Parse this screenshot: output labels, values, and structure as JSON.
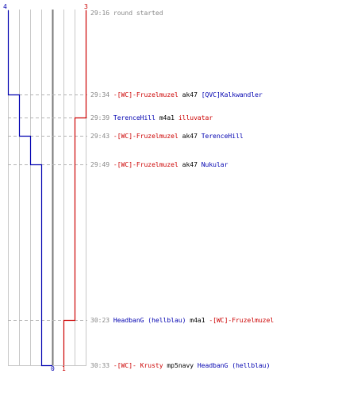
{
  "axis": {
    "left_top": "4",
    "right_top": "3",
    "bottom_mid": "0",
    "bottom_right": "1"
  },
  "colors": {
    "blue": "#0000b0",
    "red": "#cc0000",
    "grid": "#c8c8c8",
    "center": "#7a7a7a",
    "dash": "#b4b4b4",
    "time": "#888888",
    "text": "#000000"
  },
  "events": [
    {
      "time": "29:16",
      "parts": [
        {
          "text": "round started",
          "color": "gray"
        }
      ]
    },
    {
      "time": "29:34",
      "parts": [
        {
          "text": "-[WC]-Fruzelmuzel",
          "color": "red"
        },
        {
          "text": " ak47 ",
          "color": "black"
        },
        {
          "text": "[QVC]Kalkwandler",
          "color": "blue"
        }
      ]
    },
    {
      "time": "29:39",
      "parts": [
        {
          "text": "TerenceHill",
          "color": "blue"
        },
        {
          "text": " m4a1 ",
          "color": "black"
        },
        {
          "text": "illuvatar",
          "color": "red"
        }
      ]
    },
    {
      "time": "29:43",
      "parts": [
        {
          "text": "-[WC]-Fruzelmuzel",
          "color": "red"
        },
        {
          "text": " ak47 ",
          "color": "black"
        },
        {
          "text": "TerenceHill",
          "color": "blue"
        }
      ]
    },
    {
      "time": "29:49",
      "parts": [
        {
          "text": "-[WC]-Fruzelmuzel",
          "color": "red"
        },
        {
          "text": " ak47 ",
          "color": "black"
        },
        {
          "text": "Nukular",
          "color": "blue"
        }
      ]
    },
    {
      "time": "30:23",
      "parts": [
        {
          "text": "HeadbanG (hellblau)",
          "color": "blue"
        },
        {
          "text": " m4a1 ",
          "color": "black"
        },
        {
          "text": "-[WC]-Fruzelmuzel",
          "color": "red"
        }
      ]
    },
    {
      "time": "30:33",
      "parts": [
        {
          "text": "-[WC]- Krusty",
          "color": "red"
        },
        {
          "text": " mp5navy ",
          "color": "black"
        },
        {
          "text": "HeadbanG (hellblau)",
          "color": "blue"
        }
      ]
    }
  ]
}
